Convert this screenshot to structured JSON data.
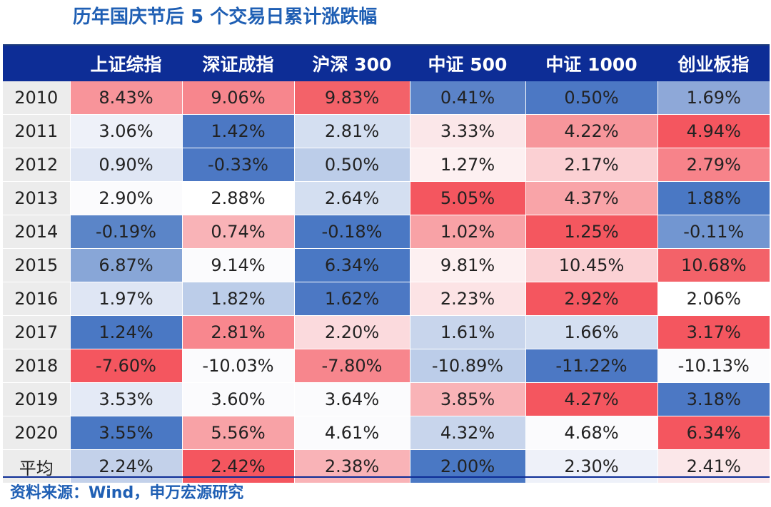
{
  "title": "历年国庆节后 5 个交易日累计涨跌幅",
  "source": "资料来源：Wind，申万宏源研究",
  "colors": {
    "high": "#f4565f",
    "mid": "#ffffff",
    "low": "#4a78c4",
    "header_bg": "#0d2d96",
    "title": "#1f5fb4"
  },
  "chart_data": {
    "type": "heatmap",
    "color_scale": "per-column, red = high, blue = low",
    "columns": [
      "上证综指",
      "深证成指",
      "沪深 300",
      "中证 500",
      "中证 1000",
      "创业板指"
    ],
    "rows": [
      "2010",
      "2011",
      "2012",
      "2013",
      "2014",
      "2015",
      "2016",
      "2017",
      "2018",
      "2019",
      "2020",
      "平均"
    ],
    "values": [
      [
        8.43,
        9.06,
        9.83,
        0.41,
        0.5,
        1.69
      ],
      [
        3.06,
        1.42,
        2.81,
        3.33,
        4.22,
        4.94
      ],
      [
        0.9,
        -0.33,
        0.5,
        1.27,
        2.17,
        2.79
      ],
      [
        2.9,
        2.88,
        2.64,
        5.05,
        4.37,
        1.88
      ],
      [
        -0.19,
        0.74,
        -0.18,
        1.02,
        1.25,
        -0.11
      ],
      [
        6.87,
        9.14,
        6.34,
        9.81,
        10.45,
        10.68
      ],
      [
        1.97,
        1.82,
        1.62,
        2.23,
        2.92,
        2.06
      ],
      [
        1.24,
        2.81,
        2.2,
        1.61,
        1.66,
        3.17
      ],
      [
        -7.6,
        -10.03,
        -7.8,
        -10.89,
        -11.22,
        -10.13
      ],
      [
        3.53,
        3.6,
        3.64,
        3.85,
        4.27,
        3.18
      ],
      [
        3.55,
        5.56,
        4.61,
        4.32,
        4.68,
        6.34
      ],
      [
        2.24,
        2.42,
        2.38,
        2.0,
        2.3,
        2.41
      ]
    ],
    "cell_colors": [
      [
        "#f8949a",
        "#f7868d",
        "#f36269",
        "#5b83c8",
        "#4c78c4",
        "#8ea8d8"
      ],
      [
        "#eef1f9",
        "#4c78c4",
        "#d4dff1",
        "#fbe7e9",
        "#f7969b",
        "#f4565f"
      ],
      [
        "#dfe6f4",
        "#4c78c4",
        "#bccde9",
        "#fdf0f1",
        "#fbd0d3",
        "#f7838a"
      ],
      [
        "#fbfbfd",
        "#ffffff",
        "#d4dff1",
        "#f4565f",
        "#f9a4a8",
        "#4a78c4"
      ],
      [
        "#5b85c8",
        "#f9b3b7",
        "#4a78c4",
        "#f8a2a6",
        "#f4575f",
        "#7296d1"
      ],
      [
        "#88a6d7",
        "#fbfbfd",
        "#4a78c4",
        "#fdf0f1",
        "#fbd1d4",
        "#f36269"
      ],
      [
        "#dfe6f4",
        "#bccde9",
        "#4c78c4",
        "#fce3e5",
        "#f4565f",
        "#ffffff"
      ],
      [
        "#4a78c4",
        "#f8878e",
        "#fbdadd",
        "#c8d5ec",
        "#d4dff1",
        "#f4565f"
      ],
      [
        "#f4565f",
        "#fbfbfd",
        "#f7868d",
        "#bccde9",
        "#4c78c4",
        "#fbfbfd"
      ],
      [
        "#e4eaf6",
        "#fbfbfd",
        "#fbfbfd",
        "#f9b3b7",
        "#f4565f",
        "#4c78c4"
      ],
      [
        "#4a78c4",
        "#f8a2a6",
        "#fbfbfd",
        "#c8d5ec",
        "#fbfbfd",
        "#f4565f"
      ],
      [
        "#c3d1ea",
        "#f4565f",
        "#f9b3b7",
        "#4a78c4",
        "#eef1f9",
        "#fbe7e9"
      ]
    ]
  }
}
